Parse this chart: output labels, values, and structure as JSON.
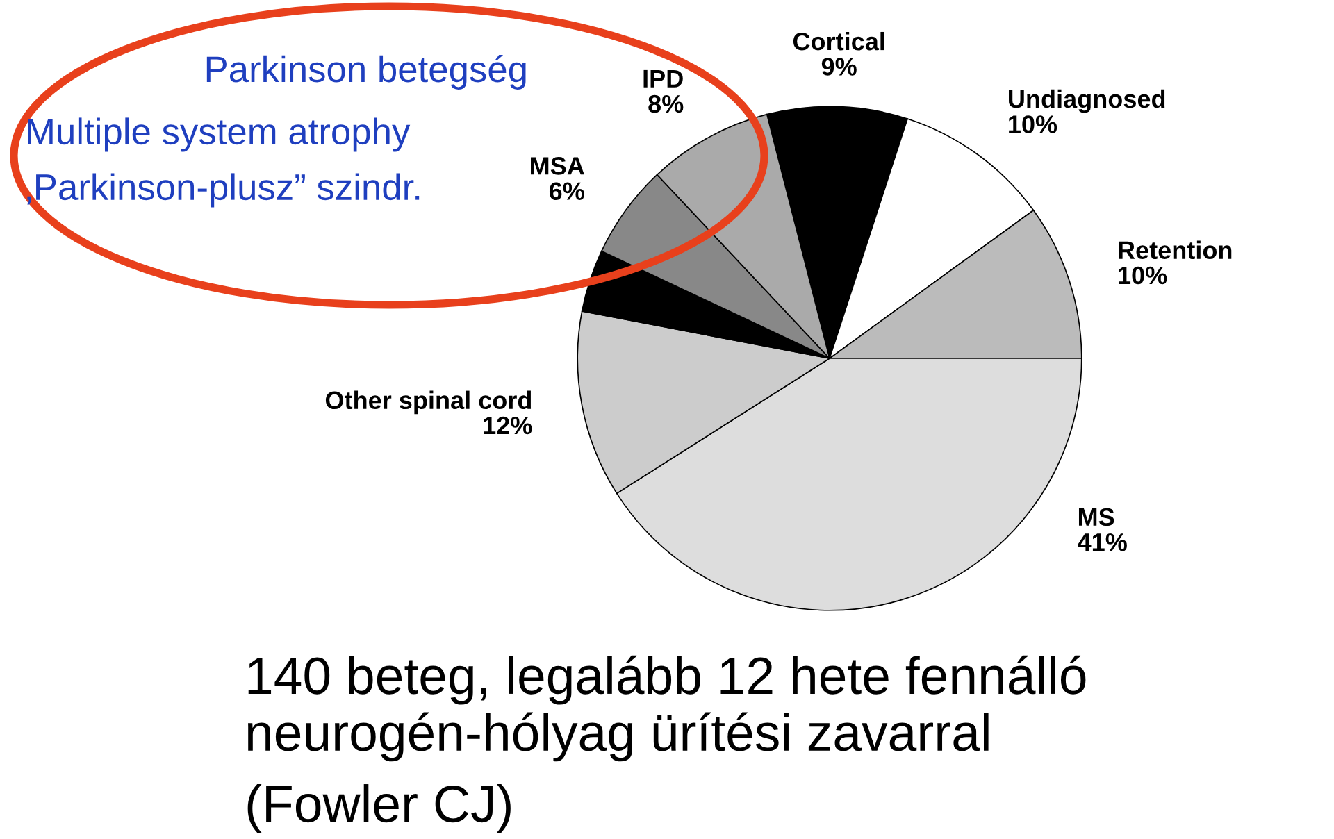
{
  "chart_data": {
    "type": "pie",
    "categories": [
      "Cortical",
      "Undiagnosed",
      "Retention",
      "MS",
      "Other spinal cord",
      null,
      "MSA",
      "IPD"
    ],
    "values": [
      9,
      10,
      10,
      41,
      12,
      4,
      6,
      8
    ],
    "colors": [
      "#000000",
      "#ffffff",
      "#bbbbbb",
      "#dddddd",
      "#cccccc",
      "#000000",
      "#888888",
      "#aaaaaa"
    ],
    "value_labels": [
      "9%",
      "10%",
      "10%",
      "41%",
      "12%",
      null,
      "6%",
      "8%"
    ],
    "annotations": [
      "Parkinson betegség",
      "Multiple system atrophy",
      "‚Parkinson-plusz” szindr.",
      "140 beteg, legalább 12 hete fennálló neurogén-hólyag ürítési zavarral",
      "(Fowler CJ)"
    ]
  }
}
